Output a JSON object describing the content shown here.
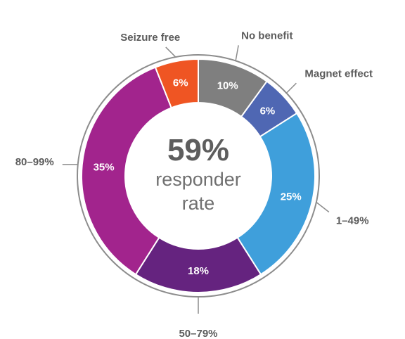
{
  "chart_data": {
    "type": "pie",
    "title": "",
    "center": {
      "value": "59%",
      "line1": "responder",
      "line2": "rate"
    },
    "slices": [
      {
        "label": "No benefit",
        "value": 10,
        "value_label": "10%",
        "color": "#7f7f7f"
      },
      {
        "label": "Magnet effect",
        "value": 6,
        "value_label": "6%",
        "color": "#4f67b3"
      },
      {
        "label": "1–49%",
        "value": 25,
        "value_label": "25%",
        "color": "#3f9fdb"
      },
      {
        "label": "50–79%",
        "value": 18,
        "value_label": "18%",
        "color": "#65237f"
      },
      {
        "label": "80–99%",
        "value": 35,
        "value_label": "35%",
        "color": "#a2248d"
      },
      {
        "label": "Seizure free",
        "value": 6,
        "value_label": "6%",
        "color": "#ef5523"
      }
    ]
  }
}
